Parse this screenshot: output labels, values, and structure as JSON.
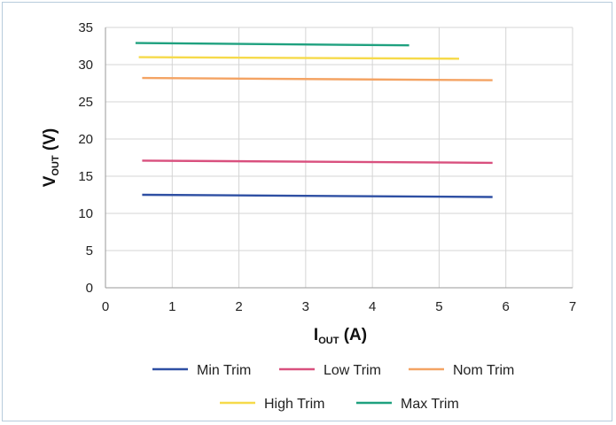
{
  "chart_data": {
    "type": "line",
    "title": "",
    "xlabel": {
      "main": "I",
      "sub": "OUT",
      "unit": " (A)"
    },
    "ylabel": {
      "main": "V",
      "sub": "OUT",
      "unit": " (V)"
    },
    "xlim": [
      0,
      7
    ],
    "ylim": [
      0,
      35
    ],
    "xticks": [
      0,
      1,
      2,
      3,
      4,
      5,
      6,
      7
    ],
    "yticks": [
      0,
      5,
      10,
      15,
      20,
      25,
      30,
      35
    ],
    "grid": true,
    "legend_position": "bottom",
    "series": [
      {
        "name": "Min Trim",
        "color": "#2e4fa3",
        "x": [
          0.55,
          5.8
        ],
        "y": [
          12.5,
          12.2
        ]
      },
      {
        "name": "Low Trim",
        "color": "#d9507e",
        "x": [
          0.55,
          5.8
        ],
        "y": [
          17.1,
          16.8
        ]
      },
      {
        "name": "Nom Trim",
        "color": "#f4a363",
        "x": [
          0.55,
          5.8
        ],
        "y": [
          28.2,
          27.9
        ]
      },
      {
        "name": "High Trim",
        "color": "#f6da4a",
        "x": [
          0.5,
          5.3
        ],
        "y": [
          31.0,
          30.8
        ]
      },
      {
        "name": "Max Trim",
        "color": "#1fa17f",
        "x": [
          0.45,
          4.55
        ],
        "y": [
          32.9,
          32.6
        ]
      }
    ]
  }
}
